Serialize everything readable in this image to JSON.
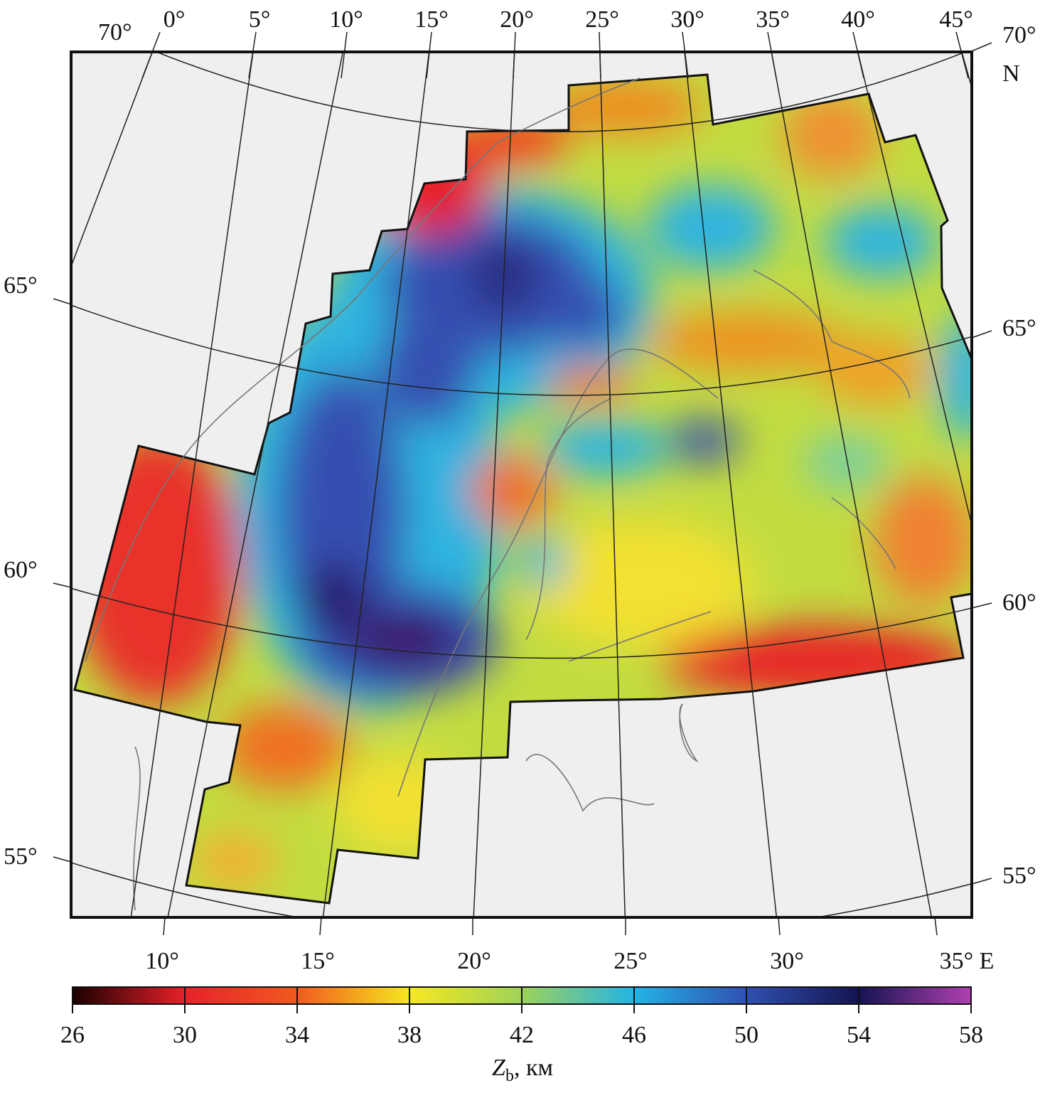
{
  "map": {
    "top_meridian_labels": [
      "0°",
      "5°",
      "10°",
      "15°",
      "20°",
      "25°",
      "30°",
      "35°",
      "40°",
      "45°"
    ],
    "bottom_meridian_labels": [
      "10°",
      "15°",
      "20°",
      "25°",
      "30°",
      "35° E"
    ],
    "left_parallel_labels": [
      "70°",
      "65°",
      "60°",
      "55°"
    ],
    "right_parallel_labels": [
      "70°",
      "N",
      "65°",
      "60°",
      "55°"
    ],
    "background_color": "#efefef",
    "field_colors": {
      "shallow": "#e8202a",
      "orange": "#f07a20",
      "yellow": "#f2e62a",
      "green": "#b8dc48",
      "cyan": "#2fb4e0",
      "blue": "#3450b0",
      "deep": "#2a1a6e"
    }
  },
  "colorbar": {
    "ticks": [
      "26",
      "30",
      "34",
      "38",
      "42",
      "46",
      "50",
      "54",
      "58"
    ],
    "label_main": "Z",
    "label_sub": "b",
    "label_unit": ", км",
    "range": [
      26,
      58
    ],
    "stops": [
      "#1a0000",
      "#e8202a",
      "#f05a20",
      "#f6e81e",
      "#9ed25a",
      "#24b4e6",
      "#3050b0",
      "#141450",
      "#b040b0"
    ]
  }
}
